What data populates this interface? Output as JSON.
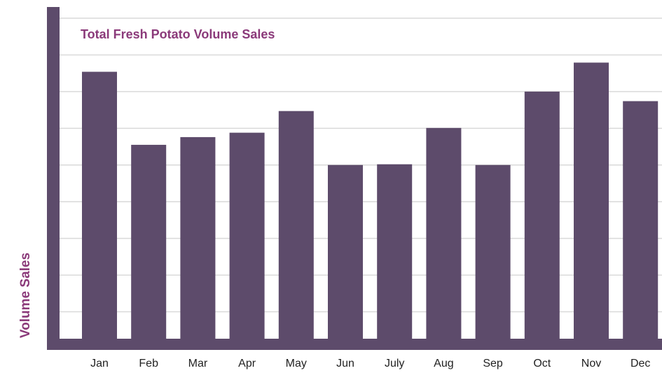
{
  "chart_data": {
    "type": "bar",
    "title": "Total Fresh Potato Volume Sales",
    "y_label": "Volume Sales",
    "categories": [
      "Jan",
      "Feb",
      "Mar",
      "Apr",
      "May",
      "Jun",
      "July",
      "Aug",
      "Sep",
      "Oct",
      "Nov",
      "Dec"
    ],
    "values": [
      7.54,
      5.55,
      5.76,
      5.88,
      6.47,
      5.0,
      5.02,
      6.01,
      5.0,
      7.0,
      7.79,
      6.74
    ],
    "color": "#5d4b6b",
    "ylim": [
      0,
      9
    ],
    "yticks": [
      0,
      1,
      2,
      3,
      4,
      5,
      6,
      7,
      8,
      9
    ],
    "grid": true
  }
}
